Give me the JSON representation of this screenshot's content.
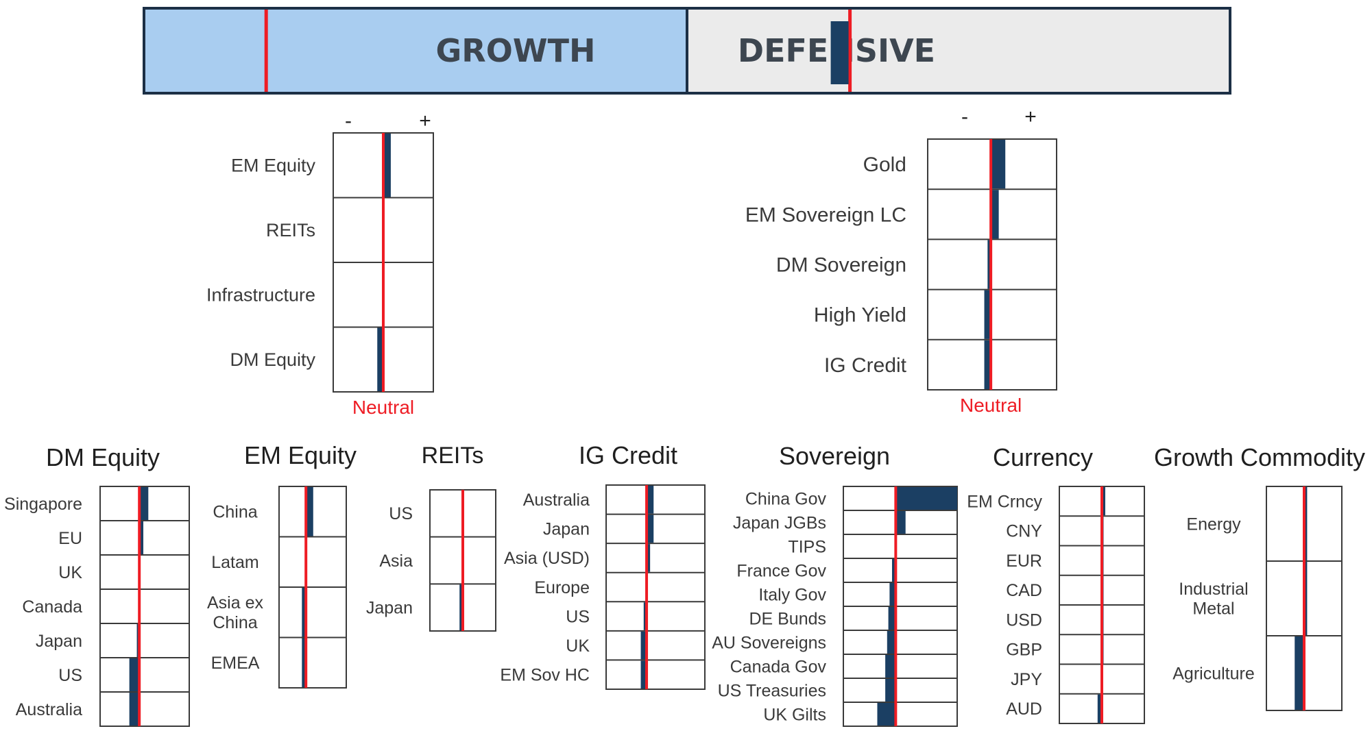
{
  "colors": {
    "growth_fill": "#a9cdf0",
    "defensive_fill": "#ebebeb",
    "frame": "#1c2f45",
    "position_bar": "#1b3f63",
    "neutral_line": "#ee1c24",
    "grid": "#3a3a3a",
    "label_text": "#3a3a3a",
    "title_text": "#1f1f1f"
  },
  "chart_data": [
    {
      "type": "bar",
      "title": "",
      "groups": [
        {
          "name": "GROWTH",
          "value": -0.55
        },
        {
          "name": "DEFENSIVE",
          "value": -0.4
        }
      ],
      "xlim": [
        -1,
        1
      ]
    },
    {
      "type": "bar",
      "title": "",
      "minus_label": "-",
      "plus_label": "+",
      "neutral_label": "Neutral",
      "xlim": [
        -1,
        1
      ],
      "categories": [
        "EM Equity",
        "REITs",
        "Infrastructure",
        "DM Equity"
      ],
      "values": [
        0.15,
        0,
        0,
        -0.12
      ]
    },
    {
      "type": "bar",
      "title": "",
      "minus_label": "-",
      "plus_label": "+",
      "neutral_label": "Neutral",
      "xlim": [
        -1,
        1
      ],
      "categories": [
        "Gold",
        "EM Sovereign LC",
        "DM Sovereign",
        "High Yield",
        "IG Credit"
      ],
      "values": [
        0.22,
        0.12,
        -0.05,
        -0.1,
        -0.1
      ]
    },
    {
      "type": "bar",
      "title": "DM Equity",
      "xlim": [
        -1,
        1
      ],
      "categories": [
        "Singapore",
        "EU",
        "UK",
        "Canada",
        "Japan",
        "US",
        "Australia"
      ],
      "values": [
        0.18,
        0.08,
        0,
        0,
        -0.05,
        -0.2,
        -0.2
      ]
    },
    {
      "type": "bar",
      "title": "EM Equity",
      "xlim": [
        -1,
        1
      ],
      "categories": [
        "China",
        "Latam",
        [
          "Asia ex",
          "China"
        ],
        "EMEA"
      ],
      "values": [
        0.18,
        0,
        -0.1,
        -0.1
      ]
    },
    {
      "type": "bar",
      "title": "REITs",
      "xlim": [
        -1,
        1
      ],
      "categories": [
        "US",
        "Asia",
        "Japan"
      ],
      "values": [
        0,
        0,
        -0.1
      ]
    },
    {
      "type": "bar",
      "title": "IG Credit",
      "xlim": [
        -1,
        1
      ],
      "categories": [
        "Australia",
        "Japan",
        "Asia (USD)",
        "Europe",
        "US",
        "UK",
        "EM Sov HC"
      ],
      "values": [
        0.12,
        0.12,
        0.06,
        0,
        -0.05,
        -0.1,
        -0.1
      ]
    },
    {
      "type": "bar",
      "title": "Sovereign",
      "xlim": [
        -1,
        1
      ],
      "categories": [
        "China Gov",
        "Japan JGBs",
        "TIPS",
        "France Gov",
        "Italy Gov",
        "DE Bunds",
        "AU Sovereigns",
        "Canada Gov",
        "US Treasuries",
        "UK Gilts"
      ],
      "values": [
        1.0,
        0.16,
        0,
        -0.06,
        -0.1,
        -0.12,
        -0.14,
        -0.17,
        -0.17,
        -0.3
      ]
    },
    {
      "type": "bar",
      "title": "Currency",
      "xlim": [
        -1,
        1
      ],
      "categories": [
        "EM Crncy",
        "CNY",
        "EUR",
        "CAD",
        "USD",
        "GBP",
        "JPY",
        "AUD"
      ],
      "values": [
        0.08,
        0.04,
        0.04,
        0.04,
        0.04,
        0.04,
        0.02,
        -0.1
      ]
    },
    {
      "type": "bar",
      "title": "Growth Commodity",
      "xlim": [
        -1,
        1
      ],
      "categories": [
        "Energy",
        [
          "Industrial",
          "Metal"
        ],
        "Agriculture"
      ],
      "values": [
        0.08,
        0.08,
        -0.25
      ]
    }
  ]
}
